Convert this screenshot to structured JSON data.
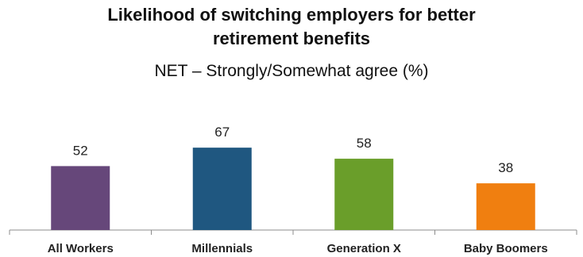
{
  "chart_data": {
    "type": "bar",
    "title_line1": "Likelihood of switching employers for better",
    "title_line2": "retirement benefits",
    "subtitle": "NET – Strongly/Somewhat agree (%)",
    "categories": [
      "All Workers",
      "Millennials",
      "Generation X",
      "Baby Boomers"
    ],
    "values": [
      52,
      67,
      58,
      38
    ],
    "colors": [
      "#66477a",
      "#1f5780",
      "#6a9e2a",
      "#f07f10"
    ],
    "xlabel": "",
    "ylabel": "",
    "ylim": [
      0,
      100
    ],
    "grid": false,
    "legend": "none",
    "data_labels": true
  }
}
